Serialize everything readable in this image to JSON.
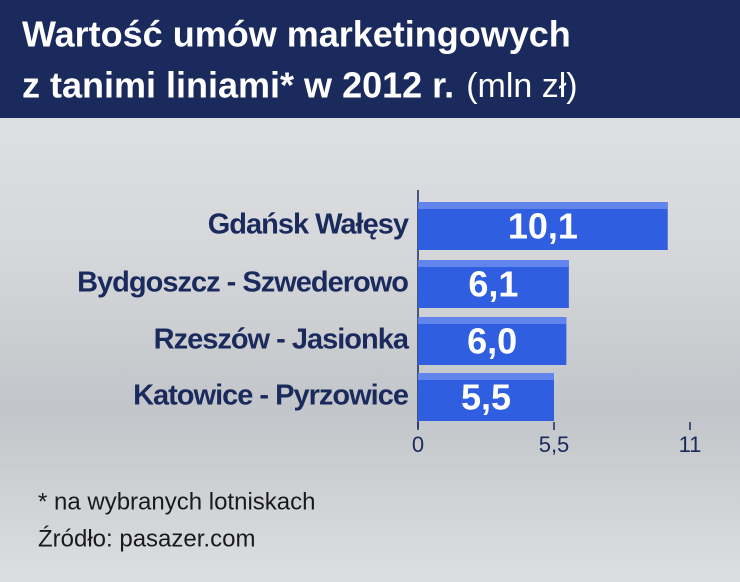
{
  "chart_data": {
    "type": "bar",
    "orientation": "horizontal",
    "title_lines": [
      "Wartość umów marketingowych",
      "z tanimi liniami* w 2012 r."
    ],
    "title_unit": "(mln zł)",
    "categories": [
      "Gdańsk Wałęsy",
      "Bydgoszcz - Szwederowo",
      "Rzeszów - Jasionka",
      "Katowice - Pyrzowice"
    ],
    "values": [
      10.1,
      6.1,
      6.0,
      5.5
    ],
    "value_labels": [
      "10,1",
      "6,1",
      "6,0",
      "5,5"
    ],
    "color": "#2f5ee0",
    "xlim": [
      0,
      11
    ],
    "xticks": [
      0,
      {
        "value": 5.5,
        "label": "5,5"
      },
      11
    ],
    "note": "* na wybranych lotniskach",
    "source": "Źródło: pasazer.com"
  }
}
